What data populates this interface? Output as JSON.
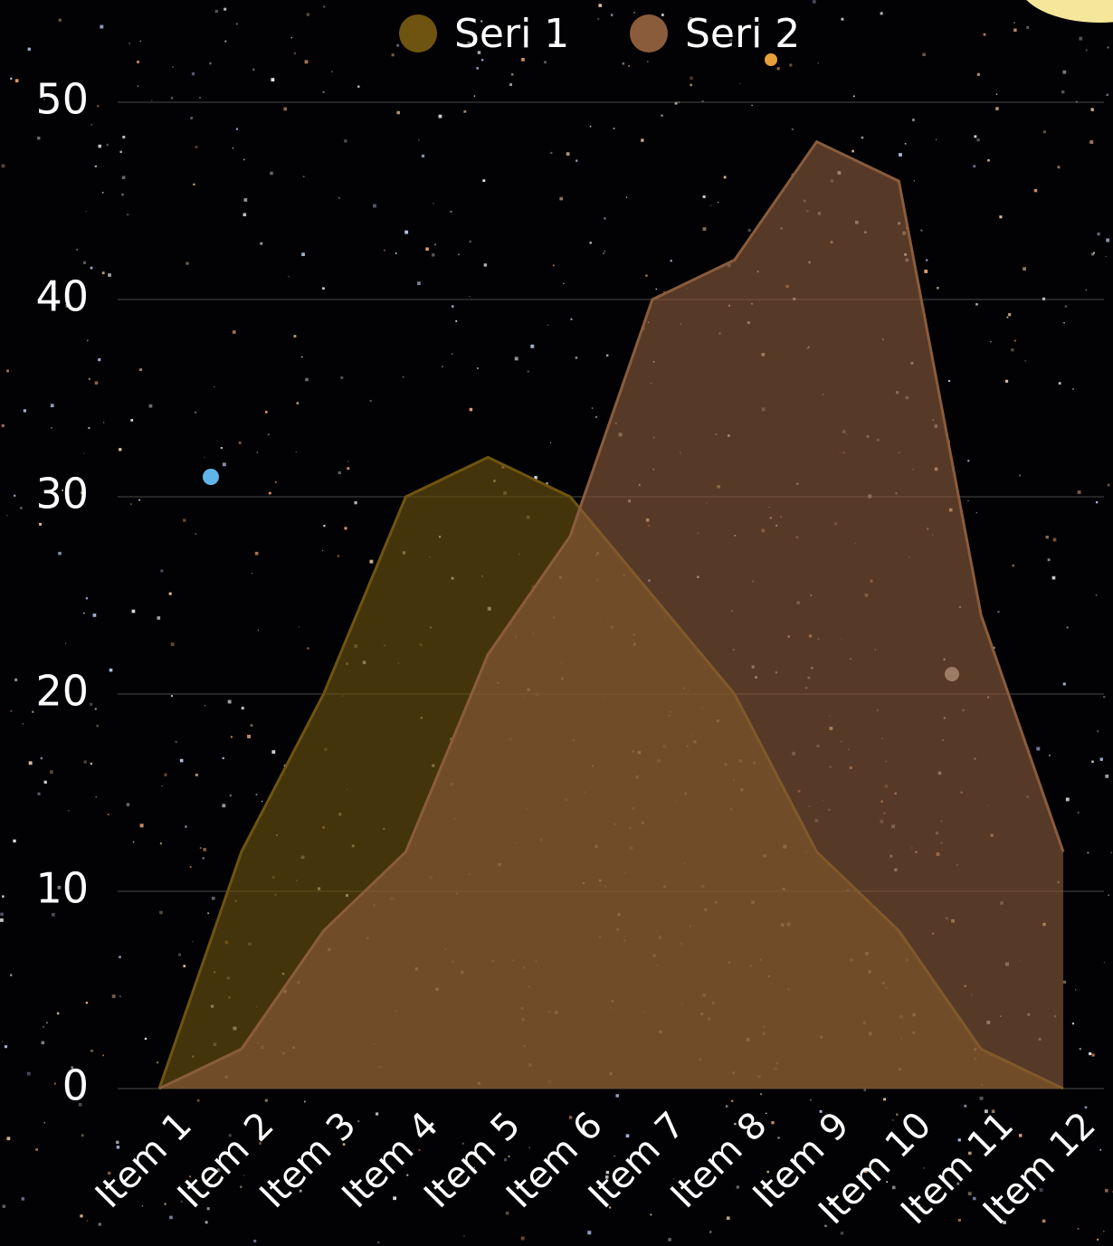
{
  "chart_data": {
    "type": "area",
    "categories": [
      "Item 1",
      "Item 2",
      "Item 3",
      "Item 4",
      "Item 5",
      "Item 6",
      "Item 7",
      "Item 8",
      "Item 9",
      "Item 10",
      "Item 11",
      "Item 12"
    ],
    "series": [
      {
        "name": "Seri 1",
        "color": "#6e5410",
        "values": [
          0,
          12,
          20,
          30,
          32,
          30,
          25,
          20,
          12,
          8,
          2,
          0
        ]
      },
      {
        "name": "Seri 2",
        "color": "#8a5c3c",
        "values": [
          0,
          2,
          8,
          12,
          22,
          28,
          40,
          42,
          48,
          46,
          24,
          12
        ]
      }
    ],
    "ylim": [
      0,
      50
    ],
    "yticks": [
      0,
      10,
      20,
      30,
      40,
      50
    ],
    "grid": true,
    "legend": "top"
  }
}
